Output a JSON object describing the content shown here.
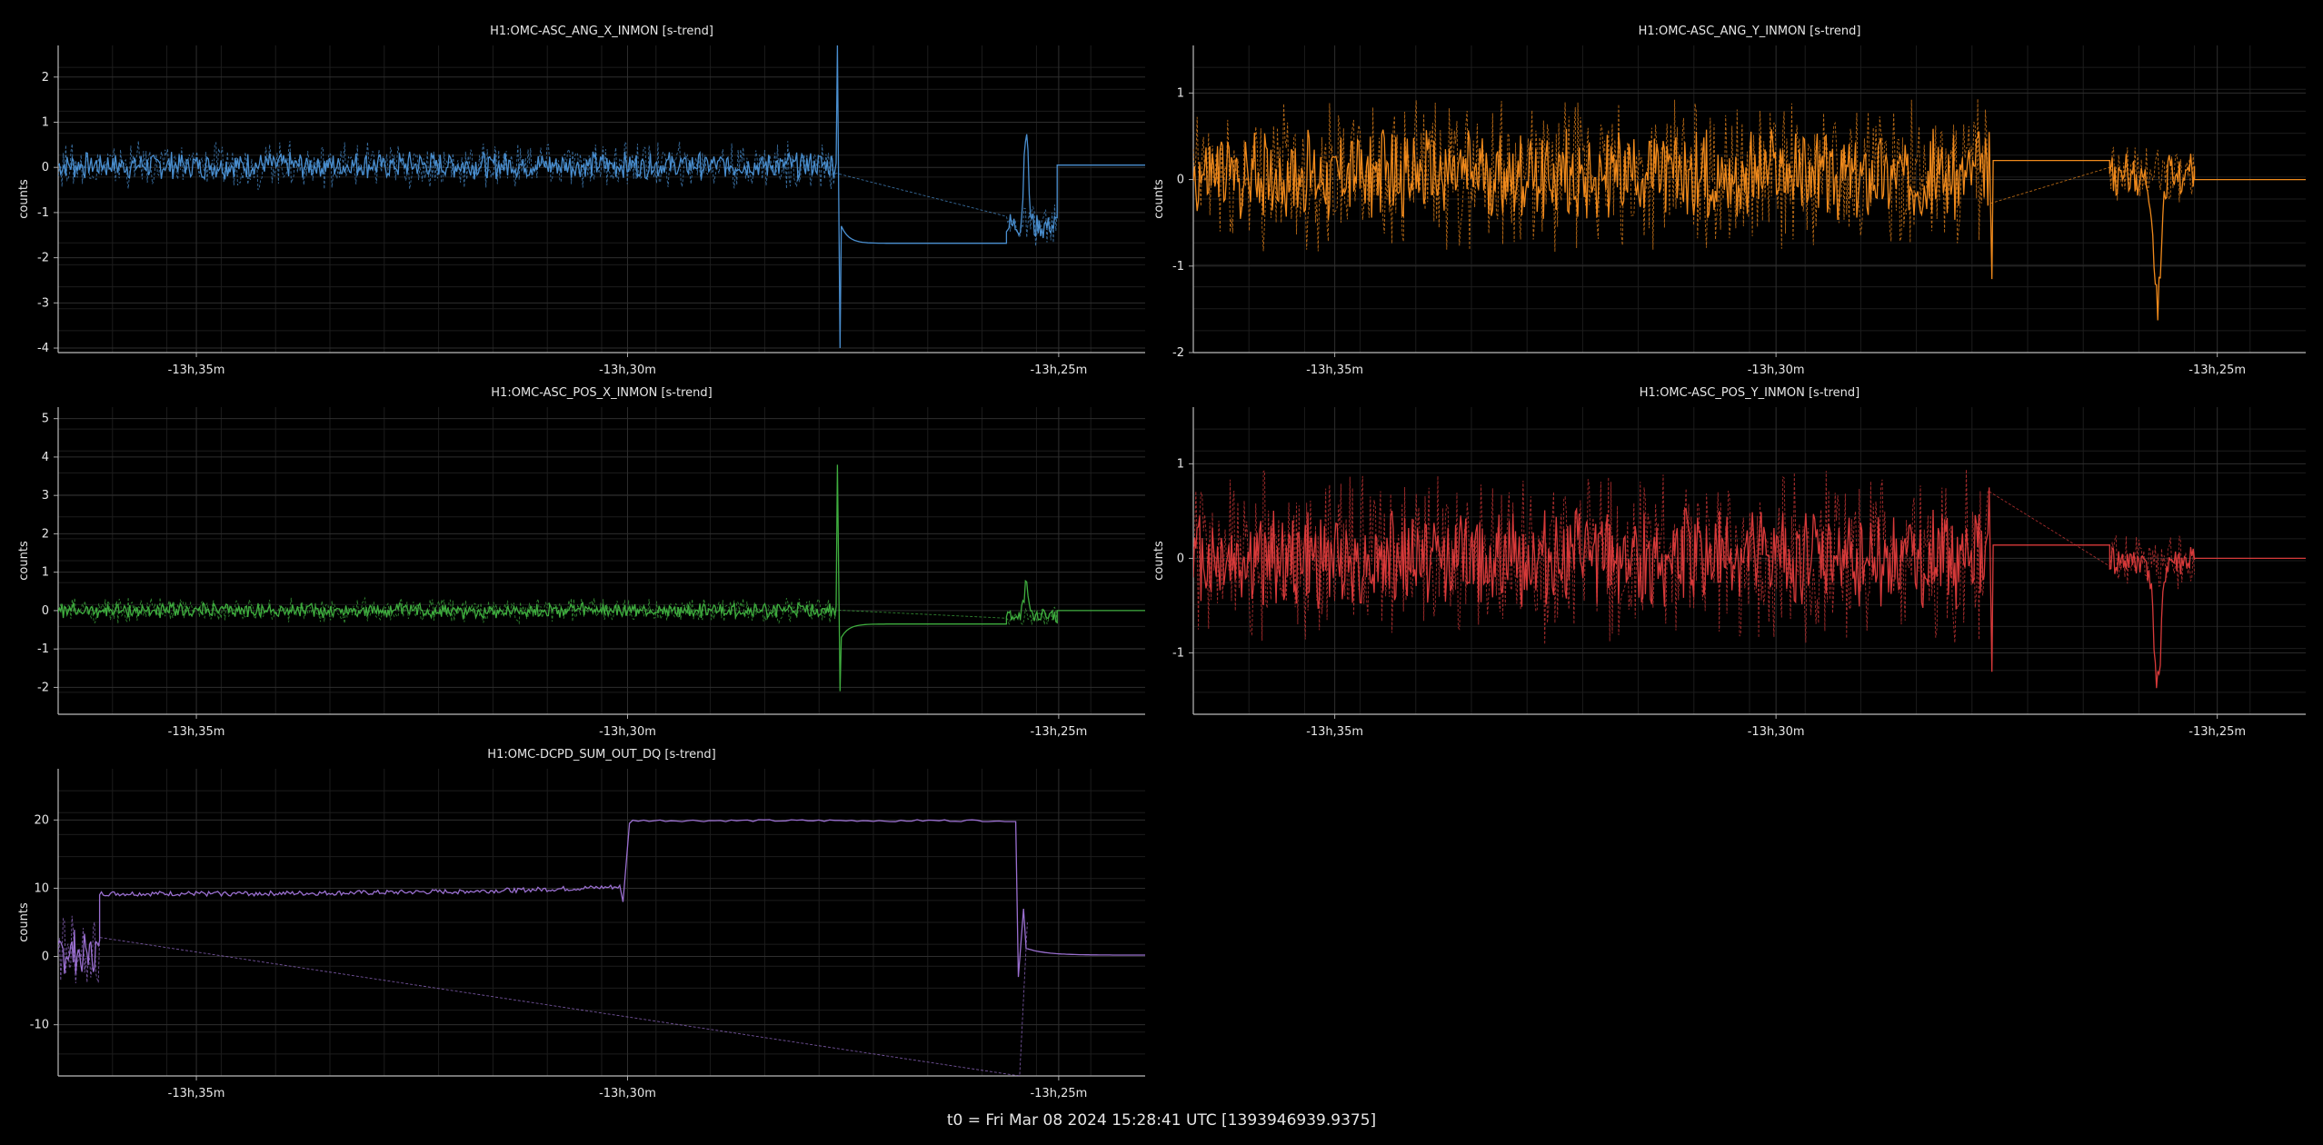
{
  "footer": {
    "t0_label": "t0 = Fri Mar 08 2024 15:28:41 UTC [1393946939.9375]"
  },
  "chart_data": [
    {
      "type": "line",
      "title": "H1:OMC-ASC_ANG_X_INMON [s-trend]",
      "ylabel": "counts",
      "xlim": [
        -13.61,
        -13.4
      ],
      "ylim": [
        -4.1,
        2.7
      ],
      "x_unit": "hours relative to t0",
      "x_ticks": [
        {
          "value": -13.5833,
          "label": "-13h,35m"
        },
        {
          "value": -13.5,
          "label": "-13h,30m"
        },
        {
          "value": -13.4167,
          "label": "-13h,25m"
        }
      ],
      "y_ticks": [
        2,
        1,
        0,
        -1,
        -2,
        -3,
        -4
      ],
      "color": "#4a8fd0",
      "grid": true,
      "series": [
        {
          "style": "solid",
          "segments": [
            {
              "x0": -13.61,
              "x1": -13.4597,
              "kind": "noise",
              "center": 0.05,
              "amp": 0.32
            },
            {
              "x0": -13.4597,
              "x1": -13.4587,
              "kind": "spike",
              "values": [
                2.7,
                -4.0
              ]
            },
            {
              "x0": -13.4587,
              "x1": -13.45,
              "kind": "settle",
              "from": -1.3,
              "to": -1.68
            },
            {
              "x0": -13.45,
              "x1": -13.4268,
              "kind": "flat",
              "value": -1.68
            },
            {
              "x0": -13.4268,
              "x1": -13.417,
              "kind": "noise",
              "center": -1.3,
              "amp": 0.35,
              "peak": {
                "x": -13.423,
                "value": 0.95
              }
            },
            {
              "x0": -13.417,
              "x1": -13.4,
              "kind": "flat",
              "value": 0.05
            }
          ]
        },
        {
          "style": "dashed",
          "segments": [
            {
              "x0": -13.61,
              "x1": -13.4597,
              "kind": "noise",
              "center": 0.05,
              "amp": 0.55
            },
            {
              "x0": -13.4268,
              "x1": -13.417,
              "kind": "noise",
              "center": -1.3,
              "amp": 0.5
            }
          ]
        }
      ]
    },
    {
      "type": "line",
      "title": "H1:OMC-ASC_ANG_Y_INMON [s-trend]",
      "ylabel": "counts",
      "xlim": [
        -13.61,
        -13.4
      ],
      "ylim": [
        -2.0,
        1.55
      ],
      "x_unit": "hours relative to t0",
      "x_ticks": [
        {
          "value": -13.5833,
          "label": "-13h,35m"
        },
        {
          "value": -13.5,
          "label": "-13h,30m"
        },
        {
          "value": -13.4167,
          "label": "-13h,25m"
        }
      ],
      "y_ticks": [
        1,
        0,
        -1,
        -2
      ],
      "color": "#f08a1c",
      "grid": true,
      "series": [
        {
          "style": "solid",
          "segments": [
            {
              "x0": -13.61,
              "x1": -13.46,
              "kind": "noise",
              "center": 0.05,
              "amp": 0.55
            },
            {
              "x0": -13.46,
              "x1": -13.459,
              "kind": "spike",
              "values": [
                0.55,
                -1.15
              ]
            },
            {
              "x0": -13.459,
              "x1": -13.437,
              "kind": "flat",
              "value": 0.22
            },
            {
              "x0": -13.437,
              "x1": -13.421,
              "kind": "noise",
              "center": 0.05,
              "amp": 0.25,
              "peak": {
                "x": -13.428,
                "value": -1.45
              }
            },
            {
              "x0": -13.421,
              "x1": -13.4,
              "kind": "flat",
              "value": 0.0
            }
          ]
        },
        {
          "style": "dashed",
          "segments": [
            {
              "x0": -13.61,
              "x1": -13.46,
              "kind": "noise",
              "center": 0.05,
              "amp": 0.9
            },
            {
              "x0": -13.437,
              "x1": -13.421,
              "kind": "noise",
              "center": 0.05,
              "amp": 0.35
            }
          ]
        }
      ]
    },
    {
      "type": "line",
      "title": "H1:OMC-ASC_POS_X_INMON [s-trend]",
      "ylabel": "counts",
      "xlim": [
        -13.61,
        -13.4
      ],
      "ylim": [
        -2.7,
        5.3
      ],
      "x_unit": "hours relative to t0",
      "x_ticks": [
        {
          "value": -13.5833,
          "label": "-13h,35m"
        },
        {
          "value": -13.5,
          "label": "-13h,30m"
        },
        {
          "value": -13.4167,
          "label": "-13h,25m"
        }
      ],
      "y_ticks": [
        5,
        4,
        3,
        2,
        1,
        0,
        -1,
        -2
      ],
      "color": "#3fae3f",
      "grid": true,
      "series": [
        {
          "style": "solid",
          "segments": [
            {
              "x0": -13.61,
              "x1": -13.4597,
              "kind": "noise",
              "center": 0.0,
              "amp": 0.2
            },
            {
              "x0": -13.4597,
              "x1": -13.4587,
              "kind": "spike",
              "values": [
                3.8,
                -2.1
              ]
            },
            {
              "x0": -13.4587,
              "x1": -13.45,
              "kind": "settle",
              "from": -0.7,
              "to": -0.35
            },
            {
              "x0": -13.45,
              "x1": -13.4268,
              "kind": "flat",
              "value": -0.35
            },
            {
              "x0": -13.4268,
              "x1": -13.417,
              "kind": "noise",
              "center": -0.15,
              "amp": 0.2,
              "peak": {
                "x": -13.423,
                "value": 0.65
              }
            },
            {
              "x0": -13.417,
              "x1": -13.4,
              "kind": "flat",
              "value": 0.0
            }
          ]
        },
        {
          "style": "dashed",
          "segments": [
            {
              "x0": -13.61,
              "x1": -13.4597,
              "kind": "noise",
              "center": 0.0,
              "amp": 0.35
            },
            {
              "x0": -13.4268,
              "x1": -13.417,
              "kind": "noise",
              "center": -0.15,
              "amp": 0.25
            }
          ]
        }
      ]
    },
    {
      "type": "line",
      "title": "H1:OMC-ASC_POS_Y_INMON [s-trend]",
      "ylabel": "counts",
      "xlim": [
        -13.61,
        -13.4
      ],
      "ylim": [
        -1.65,
        1.6
      ],
      "x_unit": "hours relative to t0",
      "x_ticks": [
        {
          "value": -13.5833,
          "label": "-13h,35m"
        },
        {
          "value": -13.5,
          "label": "-13h,30m"
        },
        {
          "value": -13.4167,
          "label": "-13h,25m"
        }
      ],
      "y_ticks": [
        1,
        0,
        -1
      ],
      "color": "#d83a3a",
      "grid": true,
      "series": [
        {
          "style": "solid",
          "segments": [
            {
              "x0": -13.61,
              "x1": -13.46,
              "kind": "noise",
              "center": 0.0,
              "amp": 0.55
            },
            {
              "x0": -13.46,
              "x1": -13.459,
              "kind": "spike",
              "values": [
                0.75,
                -1.2
              ]
            },
            {
              "x0": -13.459,
              "x1": -13.437,
              "kind": "flat",
              "value": 0.14
            },
            {
              "x0": -13.437,
              "x1": -13.421,
              "kind": "noise",
              "center": -0.05,
              "amp": 0.2,
              "peak": {
                "x": -13.428,
                "value": -1.35
              }
            },
            {
              "x0": -13.421,
              "x1": -13.4,
              "kind": "flat",
              "value": 0.0
            }
          ]
        },
        {
          "style": "dashed",
          "segments": [
            {
              "x0": -13.61,
              "x1": -13.46,
              "kind": "noise",
              "center": 0.0,
              "amp": 0.95
            },
            {
              "x0": -13.437,
              "x1": -13.421,
              "kind": "noise",
              "center": -0.05,
              "amp": 0.3
            }
          ]
        }
      ]
    },
    {
      "type": "line",
      "title": "H1:OMC-DCPD_SUM_OUT_DQ [s-trend]",
      "ylabel": "counts",
      "xlim": [
        -13.61,
        -13.4
      ],
      "ylim": [
        -17.5,
        27.5
      ],
      "x_unit": "hours relative to t0",
      "x_ticks": [
        {
          "value": -13.5833,
          "label": "-13h,35m"
        },
        {
          "value": -13.5,
          "label": "-13h,30m"
        },
        {
          "value": -13.4167,
          "label": "-13h,25m"
        }
      ],
      "y_ticks": [
        20,
        10,
        0,
        -10
      ],
      "color": "#9a6fd0",
      "grid": true,
      "series": [
        {
          "style": "solid",
          "segments": [
            {
              "x0": -13.61,
              "x1": -13.602,
              "kind": "noise",
              "center": 0.5,
              "amp": 3.5
            },
            {
              "x0": -13.602,
              "x1": -13.5015,
              "kind": "ramp",
              "from": 9.2,
              "to": 10.2,
              "noise": 0.35
            },
            {
              "x0": -13.5015,
              "x1": -13.499,
              "kind": "spike",
              "values": [
                8.0,
                19.5
              ]
            },
            {
              "x0": -13.499,
              "x1": -13.425,
              "kind": "flat",
              "value": 19.9,
              "noise": 0.15
            },
            {
              "x0": -13.425,
              "x1": -13.423,
              "kind": "spike",
              "values": [
                -3.0,
                7.0
              ]
            },
            {
              "x0": -13.423,
              "x1": -13.4,
              "kind": "settle",
              "from": 1.2,
              "to": 0.2
            }
          ]
        },
        {
          "style": "dashed",
          "segments": [
            {
              "x0": -13.61,
              "x1": -13.602,
              "kind": "noise",
              "center": 0.5,
              "amp": 6.5
            },
            {
              "x0": -13.425,
              "x1": -13.422,
              "kind": "spike",
              "values": [
                -17.5,
                5.0
              ]
            }
          ]
        }
      ]
    }
  ]
}
